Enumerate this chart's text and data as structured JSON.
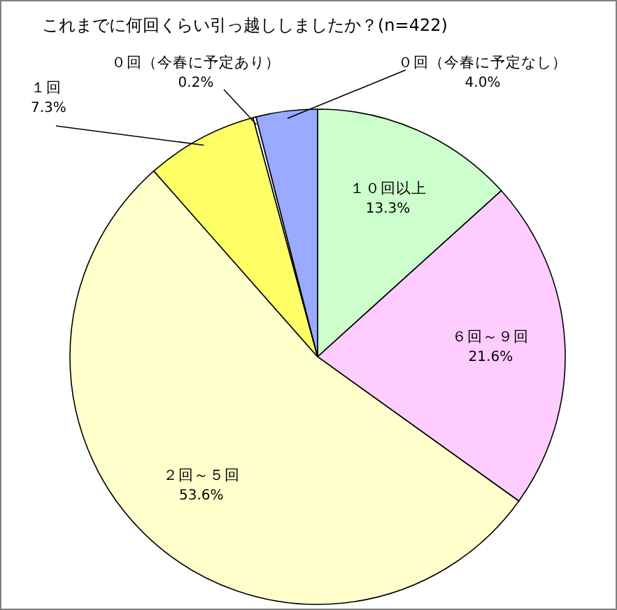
{
  "chart_data": {
    "type": "pie",
    "title": "これまでに何回くらい引っ越ししましたか？(n=422)",
    "categories": [
      "１０回以上",
      "６回～９回",
      "２回～５回",
      "１回",
      "０回（今春に予定あり）",
      "０回（今春に予定なし）"
    ],
    "values": [
      13.3,
      21.6,
      53.6,
      7.3,
      0.2,
      4.0
    ],
    "colors": [
      "#ccffcc",
      "#ffccff",
      "#ffffcc",
      "#ffff66",
      "#ffffff",
      "#99aaff"
    ],
    "value_labels": [
      "13.3%",
      "21.6%",
      "53.6%",
      "7.3%",
      "0.2%",
      "4.0%"
    ]
  }
}
